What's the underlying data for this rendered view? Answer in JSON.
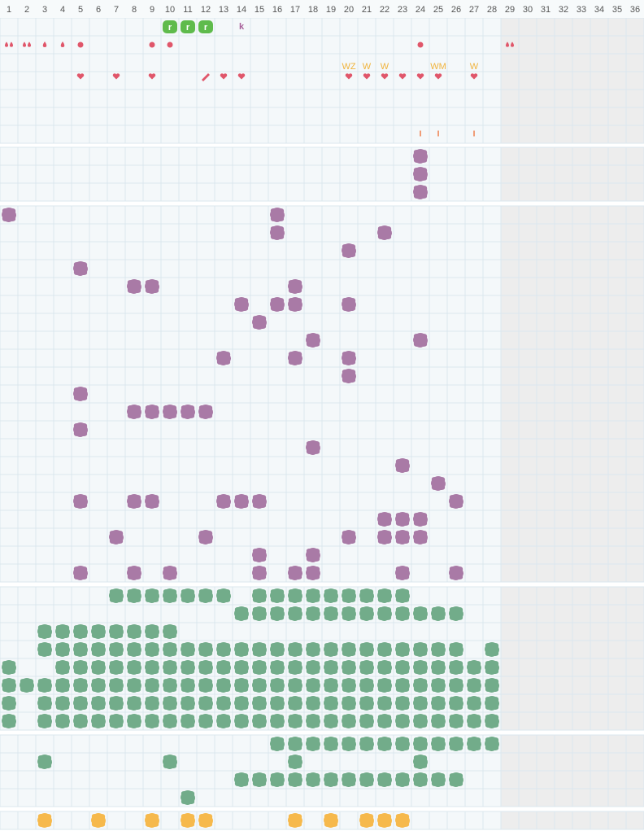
{
  "header": {
    "days": [
      1,
      2,
      3,
      4,
      5,
      6,
      7,
      8,
      9,
      10,
      11,
      12,
      13,
      14,
      15,
      16,
      17,
      18,
      19,
      20,
      21,
      22,
      23,
      24,
      25,
      26,
      27,
      28,
      29,
      30,
      31,
      32,
      33,
      34,
      35,
      36
    ]
  },
  "symbols": [
    {
      "col": 10,
      "row": 0,
      "kind": "badge",
      "text": "r"
    },
    {
      "col": 11,
      "row": 0,
      "kind": "badge",
      "text": "r"
    },
    {
      "col": 12,
      "row": 0,
      "kind": "badge",
      "text": "r"
    },
    {
      "col": 14,
      "row": 0,
      "kind": "letter",
      "text": "k"
    },
    {
      "col": 1,
      "row": 1,
      "kind": "drops"
    },
    {
      "col": 2,
      "row": 1,
      "kind": "drops"
    },
    {
      "col": 3,
      "row": 1,
      "kind": "drop"
    },
    {
      "col": 4,
      "row": 1,
      "kind": "drop"
    },
    {
      "col": 5,
      "row": 1,
      "kind": "dot"
    },
    {
      "col": 9,
      "row": 1,
      "kind": "dot"
    },
    {
      "col": 10,
      "row": 1,
      "kind": "dot"
    },
    {
      "col": 24,
      "row": 1,
      "kind": "dot"
    },
    {
      "col": 29,
      "row": 1,
      "kind": "drops"
    },
    {
      "col": 20,
      "row": 2,
      "kind": "label",
      "text": "WZ"
    },
    {
      "col": 21,
      "row": 2,
      "kind": "label",
      "text": "W"
    },
    {
      "col": 22,
      "row": 2,
      "kind": "label",
      "text": "W"
    },
    {
      "col": 25,
      "row": 2,
      "kind": "label",
      "text": "WM"
    },
    {
      "col": 27,
      "row": 2,
      "kind": "label",
      "text": "W"
    },
    {
      "col": 5,
      "row": 3,
      "kind": "heart"
    },
    {
      "col": 7,
      "row": 3,
      "kind": "heart"
    },
    {
      "col": 9,
      "row": 3,
      "kind": "heart"
    },
    {
      "col": 12,
      "row": 3,
      "kind": "pen"
    },
    {
      "col": 13,
      "row": 3,
      "kind": "heart"
    },
    {
      "col": 14,
      "row": 3,
      "kind": "heart"
    },
    {
      "col": 20,
      "row": 3,
      "kind": "heart"
    },
    {
      "col": 21,
      "row": 3,
      "kind": "heart"
    },
    {
      "col": 22,
      "row": 3,
      "kind": "heart"
    },
    {
      "col": 23,
      "row": 3,
      "kind": "heart"
    },
    {
      "col": 24,
      "row": 3,
      "kind": "heart"
    },
    {
      "col": 25,
      "row": 3,
      "kind": "heart"
    },
    {
      "col": 27,
      "row": 3,
      "kind": "heart"
    },
    {
      "col": 24,
      "row": 6,
      "kind": "tick",
      "text": "I"
    },
    {
      "col": 25,
      "row": 6,
      "kind": "tick",
      "text": "I"
    },
    {
      "col": 27,
      "row": 6,
      "kind": "tick",
      "text": "I"
    }
  ],
  "sections": [
    {
      "color": "#a97aa6",
      "rows": [
        [
          24
        ],
        [
          24
        ],
        [
          24
        ]
      ]
    },
    {
      "color": "#a97aa6",
      "rows": [
        [
          1,
          16
        ],
        [
          16,
          22
        ],
        [
          20
        ],
        [
          5
        ],
        [
          8,
          9,
          17
        ],
        [
          14,
          16,
          17,
          20
        ],
        [
          15
        ],
        [
          18,
          24
        ],
        [
          13,
          17,
          20
        ],
        [
          20
        ],
        [
          5
        ],
        [
          8,
          9,
          10,
          11,
          12
        ],
        [
          5
        ],
        [
          18
        ],
        [
          23
        ],
        [
          25
        ],
        [
          5,
          8,
          9,
          13,
          14,
          15,
          26
        ],
        [
          22,
          23,
          24
        ],
        [
          7,
          12,
          20,
          22,
          23,
          24
        ],
        [
          15,
          18
        ],
        [
          5,
          8,
          10,
          15,
          17,
          18,
          23,
          26
        ]
      ]
    },
    {
      "color": "#72ac8a",
      "rows": [
        [
          7,
          8,
          9,
          10,
          11,
          12,
          13,
          15,
          16,
          17,
          18,
          19,
          20,
          21,
          22,
          23
        ],
        [
          14,
          15,
          16,
          17,
          18,
          19,
          20,
          21,
          22,
          23,
          24,
          25,
          26
        ],
        [
          3,
          4,
          5,
          6,
          7,
          8,
          9,
          10
        ],
        [
          3,
          4,
          5,
          6,
          7,
          8,
          9,
          10,
          11,
          12,
          13,
          14,
          15,
          16,
          17,
          18,
          19,
          20,
          21,
          22,
          23,
          24,
          25,
          26,
          28
        ],
        [
          1,
          4,
          5,
          6,
          7,
          8,
          9,
          10,
          11,
          12,
          13,
          14,
          15,
          16,
          17,
          18,
          19,
          20,
          21,
          22,
          23,
          24,
          25,
          26,
          27,
          28
        ],
        [
          1,
          2,
          3,
          4,
          5,
          6,
          7,
          8,
          9,
          10,
          11,
          12,
          13,
          14,
          15,
          16,
          17,
          18,
          19,
          20,
          21,
          22,
          23,
          24,
          25,
          26,
          27,
          28
        ],
        [
          1,
          3,
          4,
          5,
          6,
          7,
          8,
          9,
          10,
          11,
          12,
          13,
          14,
          15,
          16,
          17,
          18,
          19,
          20,
          21,
          22,
          23,
          24,
          25,
          26,
          27,
          28
        ],
        [
          1,
          3,
          4,
          5,
          6,
          7,
          8,
          9,
          10,
          11,
          12,
          13,
          14,
          15,
          16,
          17,
          18,
          19,
          20,
          21,
          22,
          23,
          24,
          25,
          26,
          27,
          28
        ]
      ]
    },
    {
      "color": "#72ac8a",
      "rows": [
        [
          16,
          17,
          18,
          19,
          20,
          21,
          22,
          23,
          24,
          25,
          26,
          27,
          28
        ],
        [
          3,
          10,
          17,
          24
        ],
        [
          14,
          15,
          16,
          17,
          18,
          19,
          20,
          21,
          22,
          23,
          24,
          25,
          26
        ],
        [
          11
        ]
      ]
    },
    {
      "color": "#f6b94c",
      "rows": [
        [
          3,
          6,
          9,
          11,
          12,
          17,
          19,
          21,
          22,
          23
        ]
      ]
    }
  ]
}
